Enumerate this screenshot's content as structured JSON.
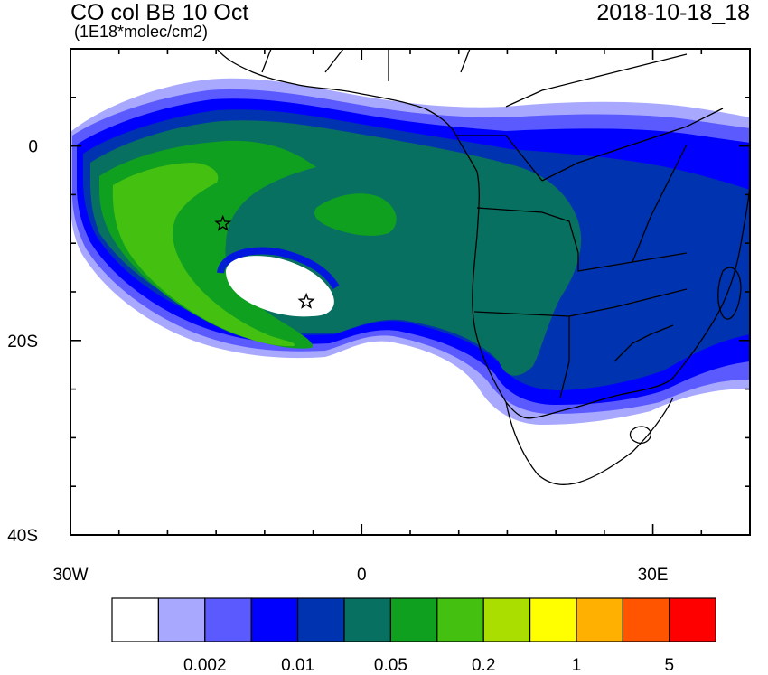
{
  "header": {
    "title": "CO col BB 10 Oct",
    "subtitle": "(1E18*molec/cm2)",
    "timestamp": "2018-10-18_18"
  },
  "axes": {
    "lat_ticks": [
      {
        "value": 0,
        "label": "0"
      },
      {
        "value": -20,
        "label": "20S"
      },
      {
        "value": -40,
        "label": "40S"
      }
    ],
    "lon_ticks": [
      {
        "value": -30,
        "label": "30W"
      },
      {
        "value": 0,
        "label": "0"
      },
      {
        "value": 30,
        "label": "30E"
      }
    ],
    "lon_range": [
      -30,
      40
    ],
    "lat_range": [
      -40,
      10
    ]
  },
  "markers": [
    {
      "name": "star-marker-1",
      "lon": -14.3,
      "lat": -8.0,
      "icon": "star-icon"
    },
    {
      "name": "star-marker-2",
      "lon": -5.7,
      "lat": -16.0,
      "icon": "star-icon"
    }
  ],
  "colorbar": {
    "colors": [
      "#ffffff",
      "#a8a8ff",
      "#5a5aff",
      "#0000ff",
      "#0033b0",
      "#087060",
      "#10a020",
      "#44c010",
      "#aadd00",
      "#ffff00",
      "#ffb000",
      "#ff5500",
      "#ff0000"
    ],
    "labels": [
      {
        "after_box": 2,
        "text": "0.002"
      },
      {
        "after_box": 4,
        "text": "0.01"
      },
      {
        "after_box": 6,
        "text": "0.05"
      },
      {
        "after_box": 8,
        "text": "0.2"
      },
      {
        "after_box": 10,
        "text": "1"
      },
      {
        "after_box": 12,
        "text": "5"
      }
    ]
  }
}
